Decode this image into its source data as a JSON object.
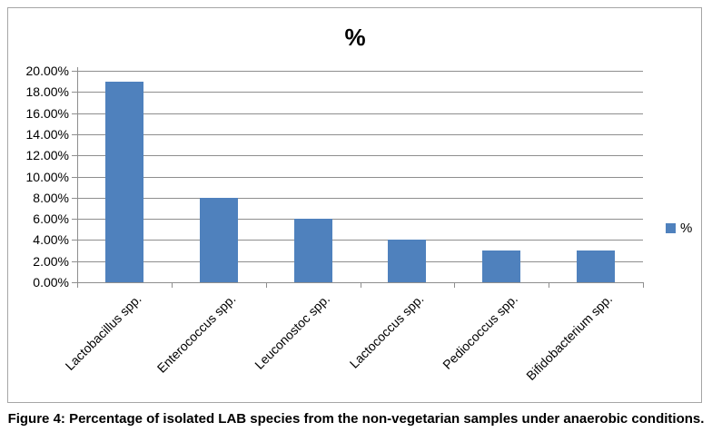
{
  "figure": {
    "caption": "Figure 4: Percentage of isolated LAB species from the non-vegetarian samples under anaerobic conditions."
  },
  "chart_data": {
    "type": "bar",
    "title": "%",
    "categories": [
      "Lactobacillus spp.",
      "Enterococcus spp.",
      "Leuconostoc spp.",
      "Lactococcus spp.",
      "Pediococcus spp.",
      "Bifidobacterium spp."
    ],
    "values": [
      19,
      8,
      6,
      4,
      3,
      3
    ],
    "unit": "%",
    "xlabel": "",
    "ylabel": "",
    "ylim": [
      0,
      20
    ],
    "y_tick_step": 2,
    "y_tick_labels": [
      "0.00%",
      "2.00%",
      "4.00%",
      "6.00%",
      "8.00%",
      "10.00%",
      "12.00%",
      "14.00%",
      "16.00%",
      "18.00%",
      "20.00%"
    ],
    "grid": true,
    "legend": {
      "position": "right",
      "entries": [
        "%"
      ]
    },
    "colors": {
      "bar": "#4f81bd",
      "gridline": "#8e8e8e",
      "axis": "#8e8e8e",
      "frame_border": "#a6a6a6",
      "text": "#000000"
    }
  }
}
